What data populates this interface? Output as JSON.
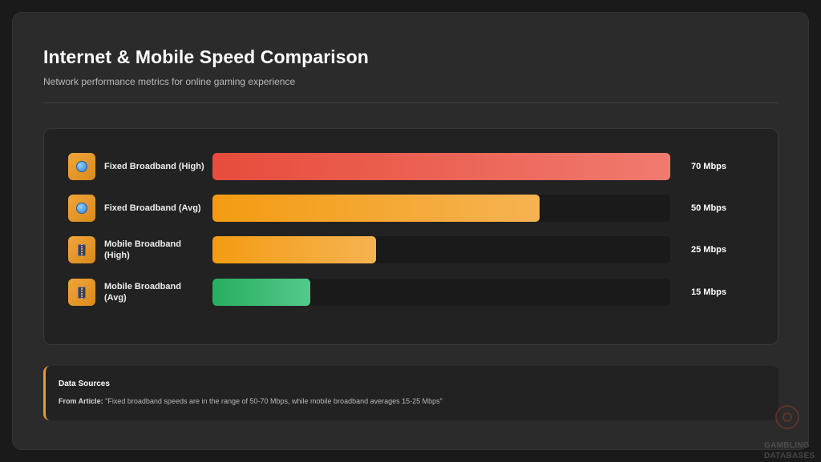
{
  "header": {
    "title": "Internet & Mobile Speed Comparison",
    "subtitle": "Network performance metrics for online gaming experience"
  },
  "chart_data": {
    "type": "bar",
    "orientation": "horizontal",
    "title": "Internet & Mobile Speed Comparison",
    "subtitle": "Network performance metrics for online gaming experience",
    "xlim": [
      0,
      70
    ],
    "categories": [
      "Fixed Broadband (High)",
      "Fixed Broadband (Avg)",
      "Mobile Broadband (High)",
      "Mobile Broadband (Avg)"
    ],
    "values": [
      70,
      50,
      25,
      15
    ],
    "unit": "Mbps",
    "value_labels": [
      "70 Mbps",
      "50 Mbps",
      "25 Mbps",
      "15 Mbps"
    ],
    "icons": [
      "globe-icon",
      "globe-icon",
      "mobile-phone-icon",
      "mobile-phone-icon"
    ],
    "bar_colors": [
      [
        "#e74c3c",
        "#f07a6e"
      ],
      [
        "#f39c12",
        "#f6b352"
      ],
      [
        "#f39c12",
        "#f6b352"
      ],
      [
        "#27ae60",
        "#55c98a"
      ]
    ]
  },
  "sources": {
    "title": "Data Sources",
    "prefix": "From Article:",
    "quote": " \"Fixed broadband speeds are in the range of 50-70 Mbps, while mobile broadband averages 15-25 Mbps\""
  },
  "watermark": {
    "line1": "GAMBLING",
    "line2": "DATABASES"
  }
}
